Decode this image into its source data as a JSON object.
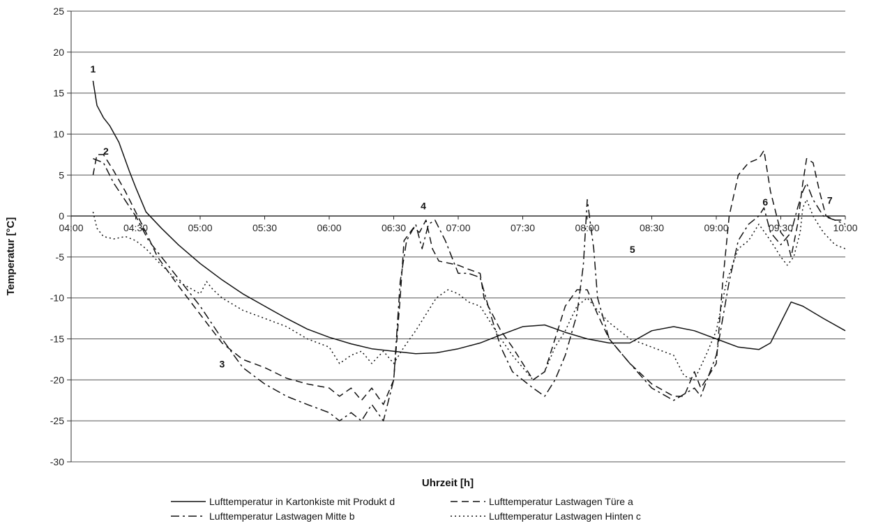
{
  "chart_data": {
    "type": "line",
    "xlabel": "Uhrzeit [h]",
    "ylabel": "Temperatur [°C]",
    "xlim": [
      4.0,
      10.0
    ],
    "ylim": [
      -30,
      25
    ],
    "x_ticks": [
      "04:00",
      "04:30",
      "05:00",
      "05:30",
      "06:00",
      "06:30",
      "07:00",
      "07:30",
      "08:00",
      "08:30",
      "09:00",
      "09:30",
      "10:00"
    ],
    "y_ticks": [
      25,
      20,
      15,
      10,
      5,
      0,
      -5,
      -10,
      -15,
      -20,
      -25,
      -30
    ],
    "grid": "horizontal",
    "legend_position": "bottom",
    "series": [
      {
        "name": "Lufttemperatur in Kartonkiste mit Produkt d",
        "style": "solid",
        "points": [
          [
            4.17,
            16.5
          ],
          [
            4.2,
            13.5
          ],
          [
            4.25,
            12
          ],
          [
            4.3,
            11
          ],
          [
            4.37,
            9
          ],
          [
            4.45,
            5.5
          ],
          [
            4.5,
            3.5
          ],
          [
            4.58,
            0.5
          ],
          [
            4.7,
            -1.5
          ],
          [
            4.83,
            -3.5
          ],
          [
            5.0,
            -5.8
          ],
          [
            5.17,
            -7.8
          ],
          [
            5.33,
            -9.5
          ],
          [
            5.5,
            -11
          ],
          [
            5.67,
            -12.5
          ],
          [
            5.83,
            -13.8
          ],
          [
            6.0,
            -14.8
          ],
          [
            6.17,
            -15.6
          ],
          [
            6.33,
            -16.2
          ],
          [
            6.5,
            -16.5
          ],
          [
            6.67,
            -16.8
          ],
          [
            6.83,
            -16.7
          ],
          [
            7.0,
            -16.2
          ],
          [
            7.17,
            -15.5
          ],
          [
            7.33,
            -14.5
          ],
          [
            7.5,
            -13.5
          ],
          [
            7.67,
            -13.3
          ],
          [
            7.83,
            -14.2
          ],
          [
            8.0,
            -15
          ],
          [
            8.17,
            -15.5
          ],
          [
            8.33,
            -15.5
          ],
          [
            8.5,
            -14
          ],
          [
            8.67,
            -13.5
          ],
          [
            8.83,
            -14
          ],
          [
            9.0,
            -15
          ],
          [
            9.17,
            -16
          ],
          [
            9.33,
            -16.3
          ],
          [
            9.42,
            -15.5
          ],
          [
            9.5,
            -13
          ],
          [
            9.58,
            -10.5
          ],
          [
            9.67,
            -11
          ],
          [
            9.83,
            -12.5
          ],
          [
            10.0,
            -14
          ]
        ]
      },
      {
        "name": "Lufttemperatur Lastwagen Türe a",
        "style": "dashed",
        "points": [
          [
            4.17,
            5
          ],
          [
            4.2,
            7.5
          ],
          [
            4.25,
            7.5
          ],
          [
            4.33,
            5.5
          ],
          [
            4.42,
            3
          ],
          [
            4.5,
            0.5
          ],
          [
            4.58,
            -2
          ],
          [
            4.67,
            -5
          ],
          [
            4.83,
            -8.5
          ],
          [
            5.0,
            -12
          ],
          [
            5.17,
            -15.5
          ],
          [
            5.33,
            -17.5
          ],
          [
            5.5,
            -18.5
          ],
          [
            5.67,
            -19.8
          ],
          [
            5.83,
            -20.5
          ],
          [
            6.0,
            -21
          ],
          [
            6.08,
            -22
          ],
          [
            6.17,
            -21
          ],
          [
            6.25,
            -22.5
          ],
          [
            6.33,
            -21
          ],
          [
            6.42,
            -23
          ],
          [
            6.5,
            -20
          ],
          [
            6.55,
            -10
          ],
          [
            6.58,
            -3
          ],
          [
            6.65,
            -1.5
          ],
          [
            6.7,
            -2
          ],
          [
            6.75,
            -0.5
          ],
          [
            6.8,
            -4
          ],
          [
            6.85,
            -5.5
          ],
          [
            7.0,
            -6
          ],
          [
            7.08,
            -6.5
          ],
          [
            7.17,
            -7
          ],
          [
            7.2,
            -10
          ],
          [
            7.33,
            -14
          ],
          [
            7.42,
            -16
          ],
          [
            7.5,
            -18
          ],
          [
            7.58,
            -20
          ],
          [
            7.67,
            -19
          ],
          [
            7.75,
            -15
          ],
          [
            7.83,
            -11
          ],
          [
            7.92,
            -9
          ],
          [
            8.0,
            -9
          ],
          [
            8.08,
            -12
          ],
          [
            8.17,
            -15
          ],
          [
            8.33,
            -18
          ],
          [
            8.5,
            -20.5
          ],
          [
            8.67,
            -22
          ],
          [
            8.75,
            -22
          ],
          [
            8.83,
            -19
          ],
          [
            8.88,
            -21
          ],
          [
            9.0,
            -18
          ],
          [
            9.05,
            -8
          ],
          [
            9.1,
            0
          ],
          [
            9.17,
            5
          ],
          [
            9.25,
            6.5
          ],
          [
            9.33,
            7
          ],
          [
            9.37,
            8
          ],
          [
            9.42,
            3
          ],
          [
            9.5,
            -2
          ],
          [
            9.55,
            -3
          ],
          [
            9.58,
            -5
          ],
          [
            9.63,
            -1
          ],
          [
            9.67,
            4
          ],
          [
            9.7,
            7
          ],
          [
            9.75,
            6.5
          ],
          [
            9.8,
            3
          ],
          [
            9.85,
            0
          ],
          [
            9.92,
            -0.5
          ],
          [
            10.0,
            -0.5
          ]
        ]
      },
      {
        "name": "Lufttemperatur Lastwagen Mitte b",
        "style": "dashdot",
        "points": [
          [
            4.17,
            7
          ],
          [
            4.25,
            6.5
          ],
          [
            4.33,
            4
          ],
          [
            4.5,
            0
          ],
          [
            4.6,
            -3
          ],
          [
            4.75,
            -6
          ],
          [
            5.0,
            -11
          ],
          [
            5.17,
            -15
          ],
          [
            5.33,
            -18.5
          ],
          [
            5.5,
            -20.5
          ],
          [
            5.67,
            -22
          ],
          [
            5.83,
            -23
          ],
          [
            6.0,
            -24
          ],
          [
            6.08,
            -25
          ],
          [
            6.17,
            -24
          ],
          [
            6.25,
            -25
          ],
          [
            6.33,
            -23
          ],
          [
            6.42,
            -25
          ],
          [
            6.5,
            -20
          ],
          [
            6.55,
            -8
          ],
          [
            6.6,
            -3
          ],
          [
            6.67,
            -1
          ],
          [
            6.72,
            -4
          ],
          [
            6.77,
            -1
          ],
          [
            6.82,
            -0.5
          ],
          [
            6.9,
            -3
          ],
          [
            7.0,
            -7
          ],
          [
            7.08,
            -7
          ],
          [
            7.17,
            -7.5
          ],
          [
            7.25,
            -12
          ],
          [
            7.33,
            -16
          ],
          [
            7.42,
            -19
          ],
          [
            7.5,
            -20
          ],
          [
            7.58,
            -21
          ],
          [
            7.67,
            -22
          ],
          [
            7.75,
            -20
          ],
          [
            7.83,
            -17
          ],
          [
            7.92,
            -12
          ],
          [
            7.97,
            -6
          ],
          [
            8.0,
            2
          ],
          [
            8.05,
            -4
          ],
          [
            8.08,
            -10
          ],
          [
            8.17,
            -15
          ],
          [
            8.33,
            -18
          ],
          [
            8.5,
            -21
          ],
          [
            8.67,
            -22.5
          ],
          [
            8.83,
            -21
          ],
          [
            8.88,
            -22
          ],
          [
            9.0,
            -17
          ],
          [
            9.1,
            -8
          ],
          [
            9.17,
            -3
          ],
          [
            9.25,
            -1
          ],
          [
            9.33,
            0
          ],
          [
            9.37,
            1
          ],
          [
            9.42,
            -2
          ],
          [
            9.5,
            -3.5
          ],
          [
            9.58,
            -2
          ],
          [
            9.63,
            1
          ],
          [
            9.67,
            3
          ],
          [
            9.7,
            4
          ],
          [
            9.75,
            2
          ],
          [
            9.83,
            0
          ],
          [
            9.92,
            -0.5
          ],
          [
            10.0,
            -1
          ]
        ]
      },
      {
        "name": "Lufttemperatur Lastwagen Hinten c",
        "style": "dotted",
        "points": [
          [
            4.17,
            0.5
          ],
          [
            4.2,
            -1.5
          ],
          [
            4.25,
            -2.5
          ],
          [
            4.33,
            -2.8
          ],
          [
            4.42,
            -2.5
          ],
          [
            4.5,
            -3
          ],
          [
            4.58,
            -4
          ],
          [
            4.67,
            -5.5
          ],
          [
            4.83,
            -8
          ],
          [
            5.0,
            -9.5
          ],
          [
            5.05,
            -8
          ],
          [
            5.1,
            -9
          ],
          [
            5.17,
            -10
          ],
          [
            5.33,
            -11.5
          ],
          [
            5.5,
            -12.5
          ],
          [
            5.67,
            -13.5
          ],
          [
            5.83,
            -15
          ],
          [
            6.0,
            -16
          ],
          [
            6.08,
            -18
          ],
          [
            6.17,
            -17
          ],
          [
            6.25,
            -16.5
          ],
          [
            6.33,
            -18
          ],
          [
            6.42,
            -16.5
          ],
          [
            6.5,
            -18
          ],
          [
            6.58,
            -16
          ],
          [
            6.67,
            -14
          ],
          [
            6.75,
            -12
          ],
          [
            6.83,
            -10
          ],
          [
            6.92,
            -9
          ],
          [
            7.0,
            -9.5
          ],
          [
            7.08,
            -10.5
          ],
          [
            7.17,
            -11
          ],
          [
            7.25,
            -13
          ],
          [
            7.33,
            -15
          ],
          [
            7.42,
            -17
          ],
          [
            7.5,
            -18.5
          ],
          [
            7.58,
            -20
          ],
          [
            7.67,
            -19
          ],
          [
            7.75,
            -16
          ],
          [
            7.83,
            -14
          ],
          [
            7.92,
            -11
          ],
          [
            8.0,
            -10
          ],
          [
            8.08,
            -11.5
          ],
          [
            8.17,
            -13
          ],
          [
            8.33,
            -15
          ],
          [
            8.5,
            -16
          ],
          [
            8.67,
            -17
          ],
          [
            8.75,
            -19.5
          ],
          [
            8.83,
            -20
          ],
          [
            8.92,
            -17
          ],
          [
            9.0,
            -14
          ],
          [
            9.08,
            -8
          ],
          [
            9.17,
            -4
          ],
          [
            9.25,
            -3
          ],
          [
            9.33,
            -1
          ],
          [
            9.42,
            -3
          ],
          [
            9.5,
            -5
          ],
          [
            9.55,
            -6
          ],
          [
            9.6,
            -5
          ],
          [
            9.65,
            -2
          ],
          [
            9.67,
            1
          ],
          [
            9.7,
            2
          ],
          [
            9.75,
            0
          ],
          [
            9.83,
            -2
          ],
          [
            9.92,
            -3.5
          ],
          [
            10.0,
            -4
          ]
        ]
      }
    ],
    "annotations": [
      {
        "text": "1",
        "x": 4.17,
        "y": 17.5
      },
      {
        "text": "2",
        "x": 4.27,
        "y": 7.5
      },
      {
        "text": "3",
        "x": 5.17,
        "y": -18.5
      },
      {
        "text": "4",
        "x": 6.73,
        "y": 0.8
      },
      {
        "text": "5",
        "x": 8.35,
        "y": -4.5
      },
      {
        "text": "6",
        "x": 9.38,
        "y": 1.3
      },
      {
        "text": "7",
        "x": 9.88,
        "y": 1.5
      }
    ]
  }
}
